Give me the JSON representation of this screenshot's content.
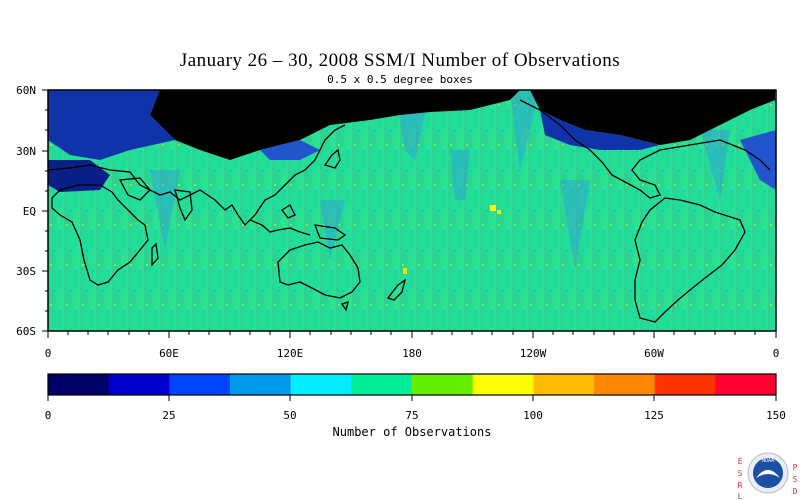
{
  "title": "January 26 – 30, 2008 SSM/I Number of Observations",
  "subtitle": "0.5 x 0.5 degree boxes",
  "lat_labels": [
    "60N",
    "30N",
    "EQ",
    "30S",
    "60S"
  ],
  "lon_labels": [
    "0",
    "60E",
    "120E",
    "180",
    "120W",
    "60W",
    "0"
  ],
  "colorbar": {
    "label": "Number of Observations",
    "tick_labels": [
      "0",
      "25",
      "50",
      "75",
      "100",
      "125",
      "150"
    ],
    "colors": [
      "#000066",
      "#0000cc",
      "#0044ff",
      "#0099ee",
      "#00eeff",
      "#00ee99",
      "#66ee00",
      "#ffff00",
      "#ffbb00",
      "#ff8800",
      "#ff3300",
      "#ff0033"
    ]
  },
  "colors": {
    "ocean_fill": "#22dd99",
    "ice_fill": "#000000",
    "land_fill": "#1133aa",
    "coast": "#000000"
  },
  "logo": {
    "left_letters": [
      "E",
      "S",
      "R",
      "L"
    ],
    "right_letters": [
      "P",
      "S",
      "D"
    ],
    "name": "NOAA"
  }
}
